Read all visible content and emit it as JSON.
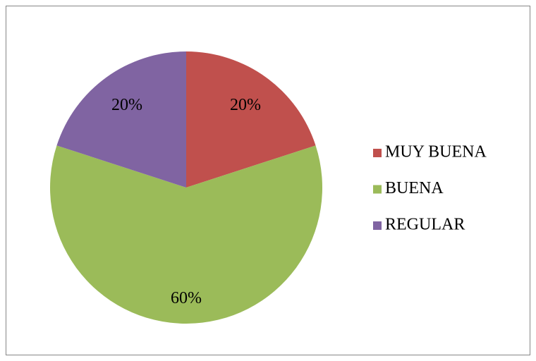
{
  "chart_data": {
    "type": "pie",
    "categories": [
      "MUY BUENA",
      "BUENA",
      "REGULAR"
    ],
    "values": [
      20,
      60,
      20
    ],
    "value_labels": [
      "20%",
      "60%",
      "20%"
    ],
    "colors": [
      "#c0504d",
      "#9bbb59",
      "#8064a2"
    ],
    "legend": "right"
  }
}
